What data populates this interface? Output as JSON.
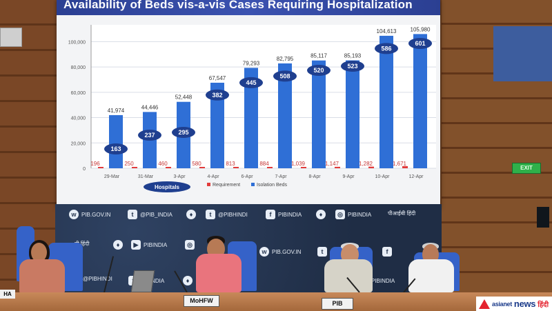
{
  "screen": {
    "title": "Availability of Beds vis-a-vis Cases Requiring Hospitalization"
  },
  "chart_data": {
    "type": "bar",
    "title": "Availability of Beds vis-a-vis Cases Requiring Hospitalization",
    "categories": [
      "29-Mar",
      "31-Mar",
      "3-Apr",
      "4-Apr",
      "6-Apr",
      "7-Apr",
      "8-Apr",
      "9-Apr",
      "10-Apr",
      "12-Apr"
    ],
    "series": [
      {
        "name": "Requirement",
        "values": [
          196,
          250,
          460,
          580,
          813,
          884,
          1039,
          1147,
          1282,
          1671
        ],
        "labels": [
          "196",
          "250",
          "460",
          "580",
          "813",
          "884",
          "1,039",
          "1,147",
          "1,282",
          "1,671"
        ]
      },
      {
        "name": "Isolation Beds",
        "values": [
          41974,
          44446,
          52448,
          67547,
          79293,
          82795,
          85117,
          85193,
          104613,
          105980
        ],
        "labels": [
          "41,974",
          "44,446",
          "52,448",
          "67,547",
          "79,293",
          "82,795",
          "85,117",
          "85,193",
          "104,613",
          "105,980"
        ]
      }
    ],
    "hospitals_label": "Hospitals",
    "hospitals": [
      163,
      237,
      295,
      382,
      445,
      508,
      520,
      523,
      586,
      601
    ],
    "y_ticks": [
      "0",
      "20,000",
      "40,000",
      "60,000",
      "80,000",
      "100,000"
    ],
    "ylim": [
      0,
      110000
    ],
    "legend_position": "bottom",
    "grid": true,
    "colors": {
      "requirement": "#e23b3b",
      "isolation_beds": "#2f6fd6",
      "hospital_ellipse": "#1f3f8f"
    }
  },
  "backdrop": {
    "items": [
      {
        "icon": "www",
        "text": "PIB.GOV.IN"
      },
      {
        "icon": "t",
        "text": "@PIB_INDIA"
      },
      {
        "icon": "emblem",
        "text": ""
      },
      {
        "icon": "t",
        "text": "@PIBHINDI"
      },
      {
        "icon": "f",
        "text": "PIBINDIA"
      },
      {
        "icon": "emblem",
        "text": ""
      },
      {
        "icon": "ig",
        "text": "PIBINDIA"
      },
      {
        "icon": "",
        "text": "पीआईबी हिंदी"
      },
      {
        "icon": "",
        "text": "बी हिंदी"
      },
      {
        "icon": "emblem",
        "text": ""
      },
      {
        "icon": "yt",
        "text": "PIBINDIA"
      },
      {
        "icon": "ig",
        "text": ""
      },
      {
        "icon": "www",
        "text": "PIB.GOV.IN"
      },
      {
        "icon": "t",
        "text": ""
      },
      {
        "icon": "f",
        "text": ""
      },
      {
        "icon": "",
        "text": "@PIBHINDI"
      },
      {
        "icon": "f",
        "text": "PIBINDIA"
      },
      {
        "icon": "emblem",
        "text": ""
      },
      {
        "icon": "ig",
        "text": "PIBINDIA"
      }
    ]
  },
  "nameplates": {
    "left": "HA",
    "center": "MoHFW",
    "right": "PIB"
  },
  "watermark": {
    "brand": "asianet",
    "brand2": "news",
    "lang": "हिंदी"
  },
  "exit_sign": "EXIT"
}
